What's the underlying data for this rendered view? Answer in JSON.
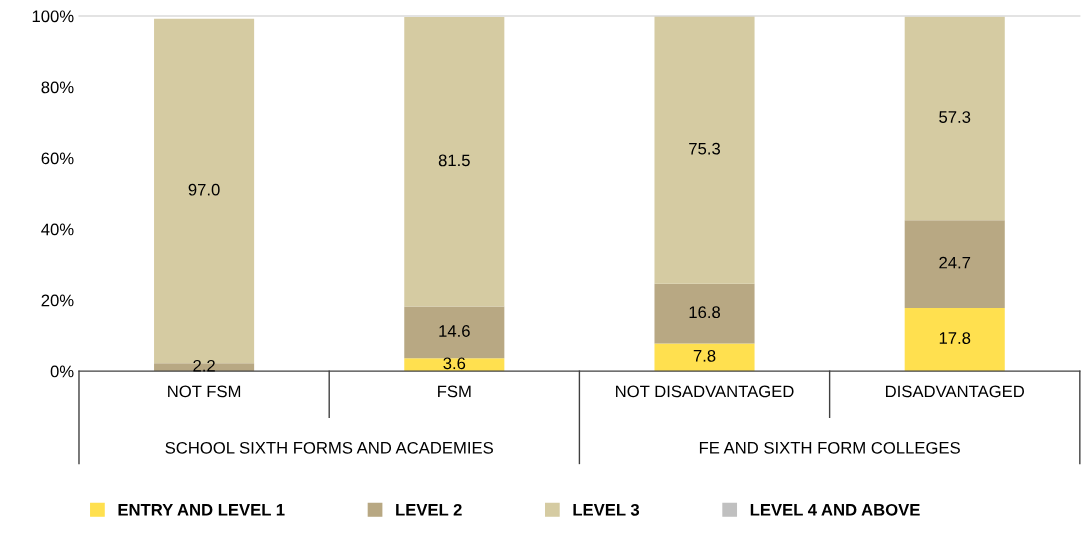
{
  "chart_data": {
    "type": "bar",
    "stacked": true,
    "categories": [
      "NOT FSM",
      "FSM",
      "NOT DISADVANTAGED",
      "DISADVANTAGED"
    ],
    "series": [
      {
        "name": "ENTRY AND LEVEL 1",
        "color": "#ffe04f",
        "values": [
          null,
          3.6,
          7.8,
          17.8
        ],
        "value_labels": [
          null,
          "3.6",
          "7.8",
          "17.8"
        ]
      },
      {
        "name": "LEVEL 2",
        "color": "#b8a883",
        "values": [
          2.2,
          14.6,
          16.8,
          24.7
        ],
        "value_labels": [
          "2.2",
          "14.6",
          "16.8",
          "24.7"
        ]
      },
      {
        "name": "LEVEL 3",
        "color": "#d5cba2",
        "values": [
          97.0,
          81.5,
          75.3,
          57.3
        ],
        "value_labels": [
          "97.0",
          "81.5",
          "75.3",
          "57.3"
        ]
      },
      {
        "name": "LEVEL 4 AND ABOVE",
        "color": "#c0c0c0",
        "values": [
          null,
          null,
          null,
          null
        ]
      }
    ],
    "ylim": [
      0,
      100
    ],
    "yticks": [
      {
        "value": 0,
        "label": "0%"
      },
      {
        "value": 20,
        "label": "20%"
      },
      {
        "value": 40,
        "label": "40%"
      },
      {
        "value": 60,
        "label": "60%"
      },
      {
        "value": 80,
        "label": "80%"
      },
      {
        "value": 100,
        "label": "100%"
      }
    ],
    "annotations": [
      "SCHOOL SIXTH FORMS AND ACADEMIES",
      "FE AND SIXTH FORM COLLEGES"
    ],
    "grid": false,
    "legend": "bottom"
  }
}
